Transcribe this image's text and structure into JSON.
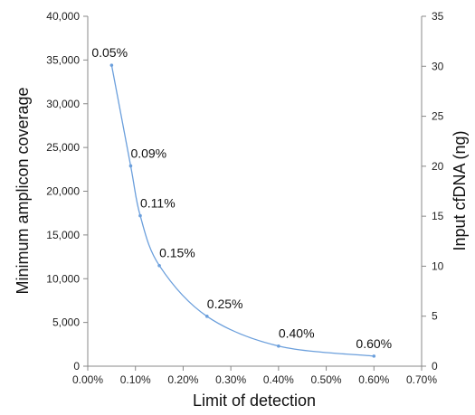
{
  "chart_data": {
    "type": "line",
    "title": "",
    "xlabel": "Limit of detection",
    "ylabel": "Minimum amplicon coverage",
    "y2label": "Input cfDNA (ng)",
    "xlim": [
      0,
      0.7
    ],
    "ylim": [
      0,
      40000
    ],
    "y2lim": [
      0,
      35
    ],
    "x_ticks": [
      "0.00%",
      "0.10%",
      "0.20%",
      "0.30%",
      "0.40%",
      "0.50%",
      "0.60%",
      "0.70%"
    ],
    "y_ticks": [
      "0",
      "5,000",
      "10,000",
      "15,000",
      "20,000",
      "25,000",
      "30,000",
      "35,000",
      "40,000"
    ],
    "y2_ticks": [
      "0",
      "5",
      "10",
      "15",
      "20",
      "25",
      "30",
      "35"
    ],
    "grid": false,
    "smooth": true,
    "series_color": "#6b9fdc",
    "points": [
      {
        "x": 0.05,
        "y": 34400,
        "label": "0.05%"
      },
      {
        "x": 0.09,
        "y": 22900,
        "label": "0.09%"
      },
      {
        "x": 0.11,
        "y": 17200,
        "label": "0.11%"
      },
      {
        "x": 0.15,
        "y": 11500,
        "label": "0.15%"
      },
      {
        "x": 0.25,
        "y": 5700,
        "label": "0.25%"
      },
      {
        "x": 0.4,
        "y": 2300,
        "label": "0.40%"
      },
      {
        "x": 0.6,
        "y": 1150,
        "label": "0.60%"
      }
    ]
  }
}
